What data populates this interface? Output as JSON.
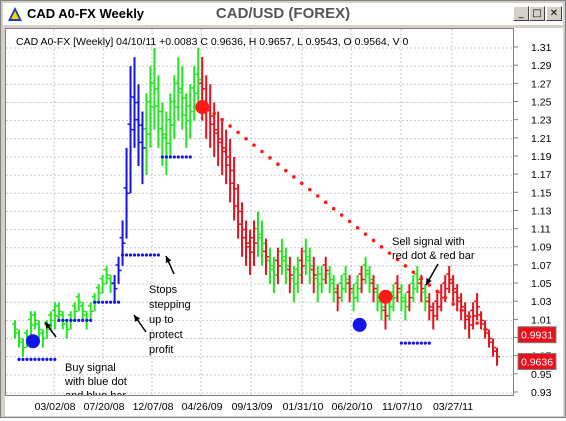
{
  "window": {
    "title": "CAD A0-FX Weekly",
    "chart_title": "CAD/USD (FOREX)",
    "buttons": {
      "minimize": "_",
      "maximize": "□",
      "close": "✕"
    }
  },
  "legend_line": "CAD A0-FX [Weekly] 04/10/11  +0.0083 C 0.9636, H 0.9657, L 0.9543, O 0.9564, V 0",
  "price_tags": [
    {
      "value": "0.9931",
      "price": 0.9931,
      "color": "#e8101a"
    },
    {
      "value": "0.9636",
      "price": 0.9636,
      "color": "#e8101a"
    }
  ],
  "annotations": [
    {
      "text": [
        "Buy signal",
        "with blue dot",
        "and blue bar"
      ]
    },
    {
      "text": [
        "Stops",
        "stepping",
        "up to",
        "protect",
        "profit"
      ]
    },
    {
      "text": [
        "Sell signal with",
        "red dot & red bar"
      ]
    }
  ],
  "colors": {
    "up_bar": "#22e622",
    "down_bar": "#e8101a",
    "blue": "#1414e6",
    "grid": "#c8c8c8",
    "red": "#ff1a1a"
  },
  "chart_data": {
    "type": "bar",
    "title": "CAD/USD (FOREX)",
    "subtitle": "CAD A0-FX [Weekly] 04/10/11",
    "xlabel": "",
    "ylabel": "",
    "ylim": [
      0.92,
      1.32
    ],
    "y_ticks": [
      "0.93",
      "0.95",
      "0.97",
      "0.99",
      "1.01",
      "1.03",
      "1.05",
      "1.07",
      "1.09",
      "1.11",
      "1.13",
      "1.15",
      "1.17",
      "1.19",
      "1.21",
      "1.23",
      "1.25",
      "1.27",
      "1.29",
      "1.31"
    ],
    "x_ticks": [
      "03/02/08",
      "07/20/08",
      "12/07/08",
      "04/26/09",
      "09/13/09",
      "01/31/10",
      "06/20/10",
      "11/07/10",
      "03/27/11"
    ],
    "grid": true,
    "series": [
      {
        "name": "",
        "values": [
          [
            0.99,
            1.01
          ],
          [
            0.98,
            1.0
          ],
          [
            0.97,
            0.99
          ],
          [
            0.98,
            1.0
          ],
          [
            0.99,
            1.02
          ],
          [
            1.0,
            1.02
          ],
          [
            0.99,
            1.01
          ],
          [
            0.98,
            1.0
          ],
          [
            0.99,
            1.01
          ],
          [
            1.0,
            1.02
          ],
          [
            1.0,
            1.03
          ],
          [
            1.01,
            1.03
          ],
          [
            1.0,
            1.02
          ],
          [
            0.99,
            1.01
          ],
          [
            1.0,
            1.02
          ],
          [
            1.01,
            1.03
          ],
          [
            1.02,
            1.04
          ],
          [
            1.01,
            1.03
          ],
          [
            1.0,
            1.02
          ],
          [
            1.01,
            1.03
          ],
          [
            1.02,
            1.04
          ],
          [
            1.03,
            1.05
          ],
          [
            1.04,
            1.06
          ],
          [
            1.05,
            1.07
          ],
          [
            1.04,
            1.06
          ],
          [
            1.03,
            1.06
          ],
          [
            1.05,
            1.08
          ],
          [
            1.07,
            1.12
          ],
          [
            1.1,
            1.2
          ],
          [
            1.15,
            1.29
          ],
          [
            1.2,
            1.3
          ],
          [
            1.18,
            1.27
          ],
          [
            1.16,
            1.24
          ],
          [
            1.17,
            1.26
          ],
          [
            1.2,
            1.29
          ],
          [
            1.22,
            1.31
          ],
          [
            1.2,
            1.28
          ],
          [
            1.18,
            1.25
          ],
          [
            1.17,
            1.24
          ],
          [
            1.19,
            1.26
          ],
          [
            1.21,
            1.28
          ],
          [
            1.23,
            1.3
          ],
          [
            1.22,
            1.29
          ],
          [
            1.2,
            1.26
          ],
          [
            1.21,
            1.27
          ],
          [
            1.23,
            1.29
          ],
          [
            1.24,
            1.31
          ],
          [
            1.23,
            1.3
          ],
          [
            1.21,
            1.28
          ],
          [
            1.2,
            1.27
          ],
          [
            1.19,
            1.25
          ],
          [
            1.18,
            1.24
          ],
          [
            1.17,
            1.23
          ],
          [
            1.16,
            1.22
          ],
          [
            1.14,
            1.21
          ],
          [
            1.12,
            1.19
          ],
          [
            1.1,
            1.16
          ],
          [
            1.08,
            1.14
          ],
          [
            1.07,
            1.12
          ],
          [
            1.06,
            1.11
          ],
          [
            1.07,
            1.12
          ],
          [
            1.08,
            1.13
          ],
          [
            1.07,
            1.12
          ],
          [
            1.06,
            1.1
          ],
          [
            1.05,
            1.09
          ],
          [
            1.04,
            1.08
          ],
          [
            1.05,
            1.09
          ],
          [
            1.06,
            1.1
          ],
          [
            1.05,
            1.09
          ],
          [
            1.04,
            1.08
          ],
          [
            1.03,
            1.07
          ],
          [
            1.04,
            1.08
          ],
          [
            1.05,
            1.09
          ],
          [
            1.06,
            1.1
          ],
          [
            1.05,
            1.09
          ],
          [
            1.04,
            1.08
          ],
          [
            1.03,
            1.07
          ],
          [
            1.04,
            1.07
          ],
          [
            1.05,
            1.08
          ],
          [
            1.04,
            1.07
          ],
          [
            1.03,
            1.06
          ],
          [
            1.02,
            1.05
          ],
          [
            1.03,
            1.06
          ],
          [
            1.04,
            1.07
          ],
          [
            1.03,
            1.06
          ],
          [
            1.02,
            1.05
          ],
          [
            1.03,
            1.06
          ],
          [
            1.04,
            1.07
          ],
          [
            1.05,
            1.08
          ],
          [
            1.04,
            1.07
          ],
          [
            1.03,
            1.06
          ],
          [
            1.02,
            1.05
          ],
          [
            1.01,
            1.04
          ],
          [
            1.0,
            1.03
          ],
          [
            1.01,
            1.04
          ],
          [
            1.02,
            1.05
          ],
          [
            1.03,
            1.06
          ],
          [
            1.02,
            1.05
          ],
          [
            1.01,
            1.04
          ],
          [
            1.02,
            1.05
          ],
          [
            1.03,
            1.06
          ],
          [
            1.04,
            1.07
          ],
          [
            1.03,
            1.06
          ],
          [
            1.02,
            1.05
          ],
          [
            1.01,
            1.04
          ],
          [
            1.0,
            1.03
          ],
          [
            1.01,
            1.04
          ],
          [
            1.02,
            1.05
          ],
          [
            1.03,
            1.06
          ],
          [
            1.04,
            1.07
          ],
          [
            1.03,
            1.06
          ],
          [
            1.02,
            1.05
          ],
          [
            1.01,
            1.04
          ],
          [
            1.0,
            1.03
          ],
          [
            0.99,
            1.02
          ],
          [
            1.0,
            1.03
          ],
          [
            1.01,
            1.04
          ],
          [
            1.0,
            1.02
          ],
          [
            0.99,
            1.01
          ],
          [
            0.98,
            1.0
          ],
          [
            0.97,
            0.99
          ],
          [
            0.96,
            0.98
          ]
        ]
      }
    ]
  }
}
